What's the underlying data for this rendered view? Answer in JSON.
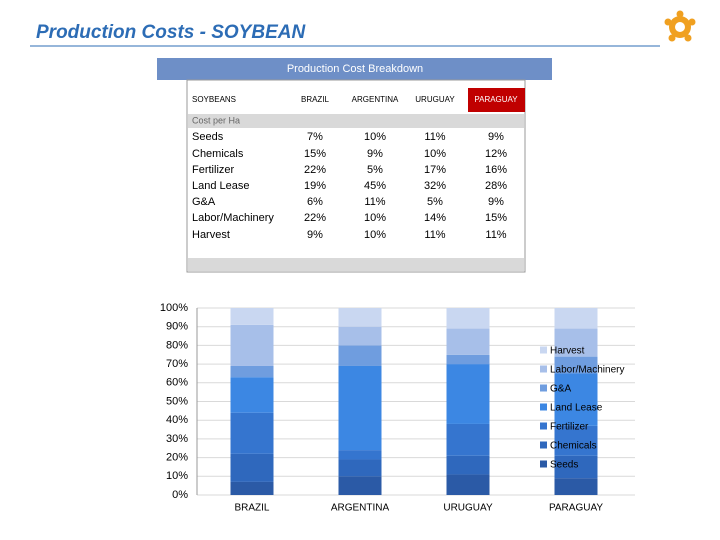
{
  "header": {
    "title": "Production Costs - SOYBEAN"
  },
  "table": {
    "title": "Production Cost Breakdown",
    "columns": [
      "SOYBEANS",
      "BRAZIL",
      "ARGENTINA",
      "URUGUAY",
      "PARAGUAY"
    ],
    "section": "Cost per Ha",
    "rows": [
      [
        "Seeds",
        "7%",
        "10%",
        "11%",
        "9%"
      ],
      [
        "Chemicals",
        "15%",
        "9%",
        "10%",
        "12%"
      ],
      [
        "Fertilizer",
        "22%",
        "5%",
        "17%",
        "16%"
      ],
      [
        "Land Lease",
        "19%",
        "45%",
        "32%",
        "28%"
      ],
      [
        "G&A",
        "6%",
        "11%",
        "5%",
        "9%"
      ],
      [
        "Labor/Machinery",
        "22%",
        "10%",
        "14%",
        "15%"
      ],
      [
        "Harvest",
        "9%",
        "10%",
        "11%",
        "11%"
      ]
    ]
  },
  "chart_data": {
    "type": "stacked_bar",
    "categories": [
      "BRAZIL",
      "ARGENTINA",
      "URUGUAY",
      "PARAGUAY"
    ],
    "series": [
      {
        "name": "Seeds",
        "color": "#2b5aa6",
        "values": [
          7,
          10,
          11,
          9
        ]
      },
      {
        "name": "Chemicals",
        "color": "#2f68bd",
        "values": [
          15,
          9,
          10,
          12
        ]
      },
      {
        "name": "Fertilizer",
        "color": "#3575cf",
        "values": [
          22,
          5,
          17,
          16
        ]
      },
      {
        "name": "Land Lease",
        "color": "#3c87e3",
        "values": [
          19,
          45,
          32,
          28
        ]
      },
      {
        "name": "G&A",
        "color": "#6f9ddf",
        "values": [
          6,
          11,
          5,
          9
        ]
      },
      {
        "name": "Labor/Machinery",
        "color": "#a7bfe9",
        "values": [
          22,
          10,
          14,
          15
        ]
      },
      {
        "name": "Harvest",
        "color": "#c9d7f1",
        "values": [
          9,
          10,
          11,
          11
        ]
      }
    ],
    "ylim": [
      0,
      100
    ],
    "yticks": [
      {
        "value": 0,
        "label": "0%"
      },
      {
        "value": 10,
        "label": "10%"
      },
      {
        "value": 20,
        "label": "20%"
      },
      {
        "value": 30,
        "label": "30%"
      },
      {
        "value": 40,
        "label": "40%"
      },
      {
        "value": 50,
        "label": "50%"
      },
      {
        "value": 60,
        "label": "60%"
      },
      {
        "value": 70,
        "label": "70%"
      },
      {
        "value": 80,
        "label": "80%"
      },
      {
        "value": 90,
        "label": "90%"
      },
      {
        "value": 100,
        "label": "100%"
      }
    ],
    "grid": true,
    "legend": "right"
  }
}
